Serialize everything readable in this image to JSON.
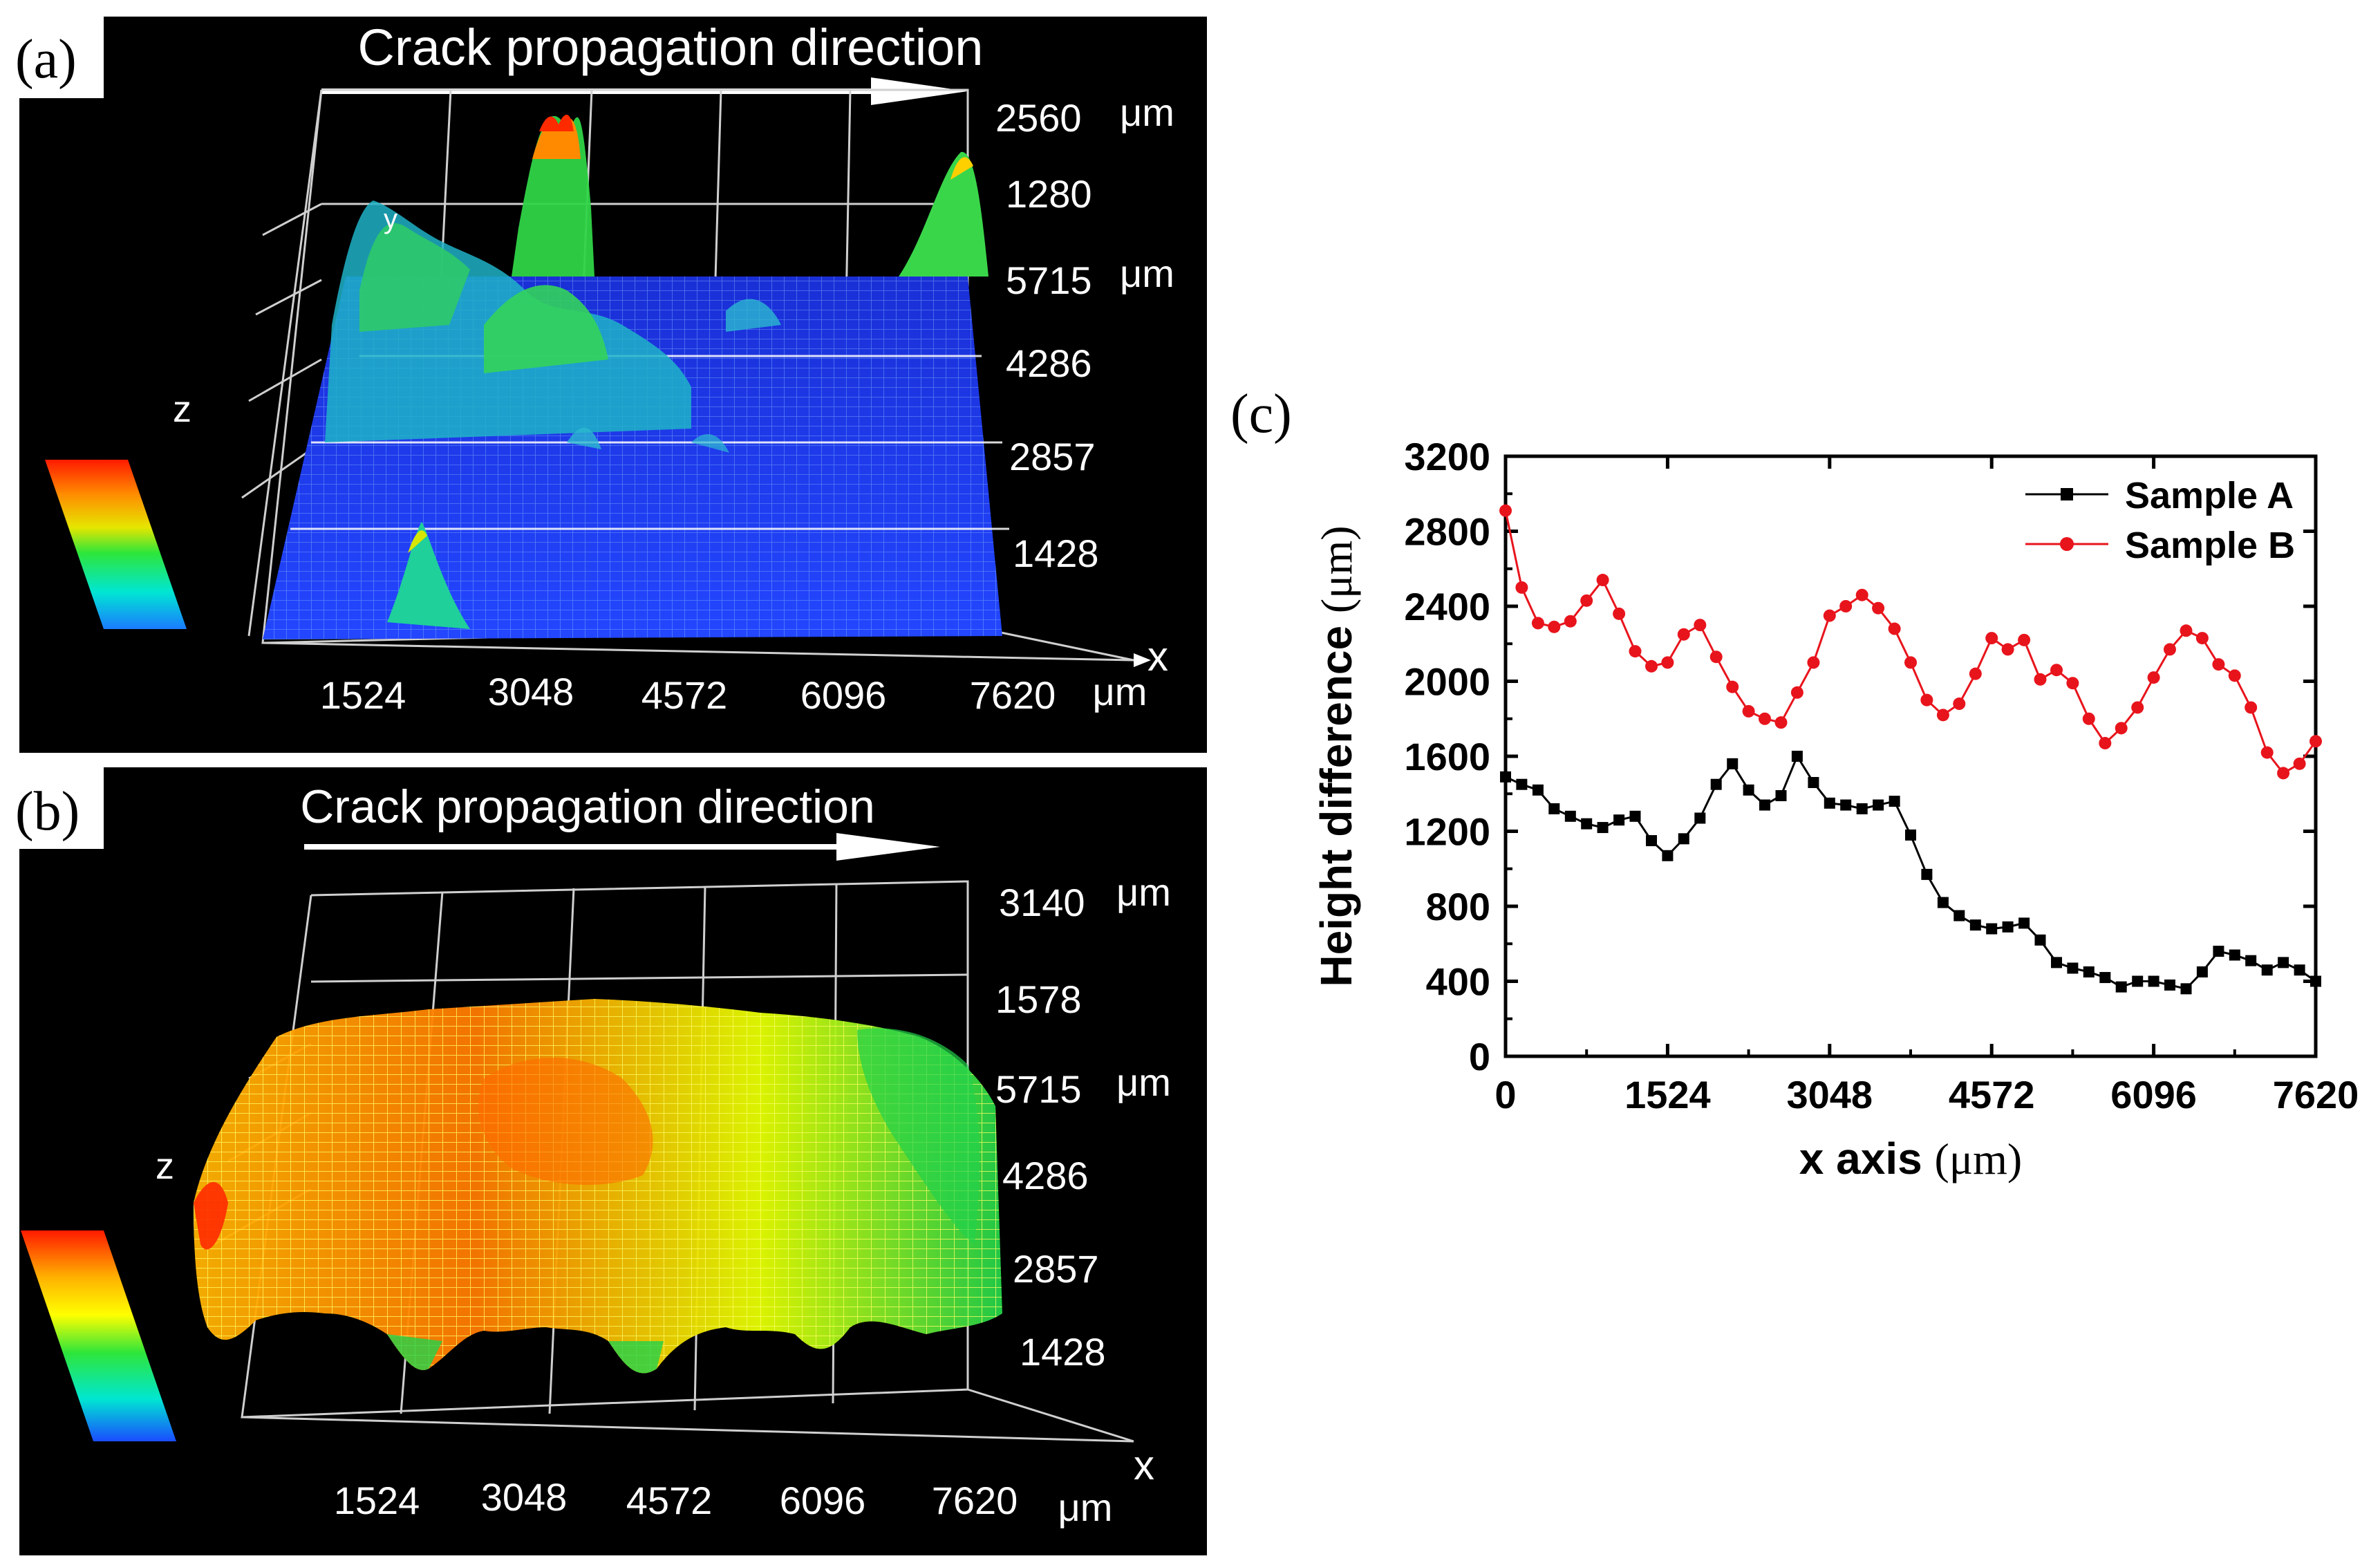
{
  "panels": {
    "a": {
      "label": "(a)",
      "arrow_text": "Crack propagation direction",
      "z_top": "2560",
      "z_top_unit": "μm",
      "z_mid": "1280",
      "y_ticks": [
        "5715",
        "4286",
        "2857",
        "1428"
      ],
      "y_unit": "μm",
      "x_ticks": [
        "1524",
        "3048",
        "4572",
        "6096",
        "7620"
      ],
      "x_unit": "μm",
      "x_axis_letter": "x",
      "y_axis_letter": "y",
      "z_axis_letter": "z",
      "colorscale": [
        "#ff2a00",
        "#ff8a00",
        "#ffd000",
        "#2ee63a",
        "#00e6d2",
        "#1a8cff"
      ]
    },
    "b": {
      "label": "(b)",
      "arrow_text": "Crack propagation direction",
      "z_top": "3140",
      "z_top_unit": "μm",
      "z_mid": "1578",
      "y_ticks": [
        "5715",
        "4286",
        "2857",
        "1428"
      ],
      "y_unit": "μm",
      "x_ticks": [
        "1524",
        "3048",
        "4572",
        "6096",
        "7620"
      ],
      "x_unit": "μm",
      "x_axis_letter": "x",
      "z_axis_letter": "z",
      "colorscale": [
        "#ff2a00",
        "#ff8a00",
        "#ffff00",
        "#2ee63a",
        "#00e6d2",
        "#1a5cff"
      ]
    },
    "c": {
      "label": "(c)"
    }
  },
  "chart_data": {
    "type": "line",
    "title": "",
    "xlabel_main": "x axis ",
    "xlabel_unit": "(μm)",
    "ylabel_main": "Height difference ",
    "ylabel_unit": "(μm)",
    "xlim": [
      0,
      7620
    ],
    "ylim": [
      0,
      3200
    ],
    "x_ticks": [
      "0",
      "1524",
      "3048",
      "4572",
      "6096",
      "7620"
    ],
    "y_ticks": [
      "0",
      "400",
      "800",
      "1200",
      "1600",
      "2000",
      "2400",
      "2800",
      "3200"
    ],
    "legend_position": "top-right",
    "series": [
      {
        "name": "Sample A",
        "color": "#000000",
        "marker": "square",
        "x": [
          0,
          152,
          305,
          457,
          610,
          762,
          914,
          1067,
          1219,
          1372,
          1524,
          1676,
          1829,
          1981,
          2134,
          2286,
          2438,
          2591,
          2743,
          2896,
          3048,
          3200,
          3353,
          3505,
          3658,
          3810,
          3962,
          4115,
          4267,
          4420,
          4572,
          4724,
          4877,
          5029,
          5182,
          5334,
          5486,
          5639,
          5791,
          5944,
          6096,
          6248,
          6401,
          6553,
          6706,
          6858,
          7010,
          7163,
          7315,
          7468,
          7620
        ],
        "y": [
          1490,
          1450,
          1420,
          1320,
          1280,
          1240,
          1220,
          1260,
          1280,
          1150,
          1070,
          1160,
          1270,
          1450,
          1560,
          1420,
          1340,
          1390,
          1600,
          1460,
          1350,
          1340,
          1320,
          1340,
          1360,
          1180,
          970,
          820,
          750,
          700,
          680,
          690,
          710,
          620,
          500,
          470,
          450,
          420,
          370,
          400,
          400,
          380,
          360,
          450,
          560,
          540,
          510,
          460,
          500,
          460,
          400
        ]
      },
      {
        "name": "Sample B",
        "color": "#e8141c",
        "marker": "circle",
        "x": [
          0,
          152,
          305,
          457,
          610,
          762,
          914,
          1067,
          1219,
          1372,
          1524,
          1676,
          1829,
          1981,
          2134,
          2286,
          2438,
          2591,
          2743,
          2896,
          3048,
          3200,
          3353,
          3505,
          3658,
          3810,
          3962,
          4115,
          4267,
          4420,
          4572,
          4724,
          4877,
          5029,
          5182,
          5334,
          5486,
          5639,
          5791,
          5944,
          6096,
          6248,
          6401,
          6553,
          6706,
          6858,
          7010,
          7163,
          7315,
          7468,
          7620
        ],
        "y": [
          2910,
          2500,
          2310,
          2290,
          2320,
          2430,
          2540,
          2360,
          2160,
          2080,
          2100,
          2250,
          2300,
          2130,
          1970,
          1840,
          1800,
          1780,
          1940,
          2100,
          2350,
          2400,
          2460,
          2390,
          2280,
          2100,
          1900,
          1820,
          1880,
          2040,
          2230,
          2170,
          2220,
          2010,
          2060,
          1990,
          1800,
          1670,
          1750,
          1860,
          2020,
          2170,
          2270,
          2230,
          2090,
          2030,
          1860,
          1620,
          1510,
          1560,
          1680
        ]
      }
    ]
  }
}
